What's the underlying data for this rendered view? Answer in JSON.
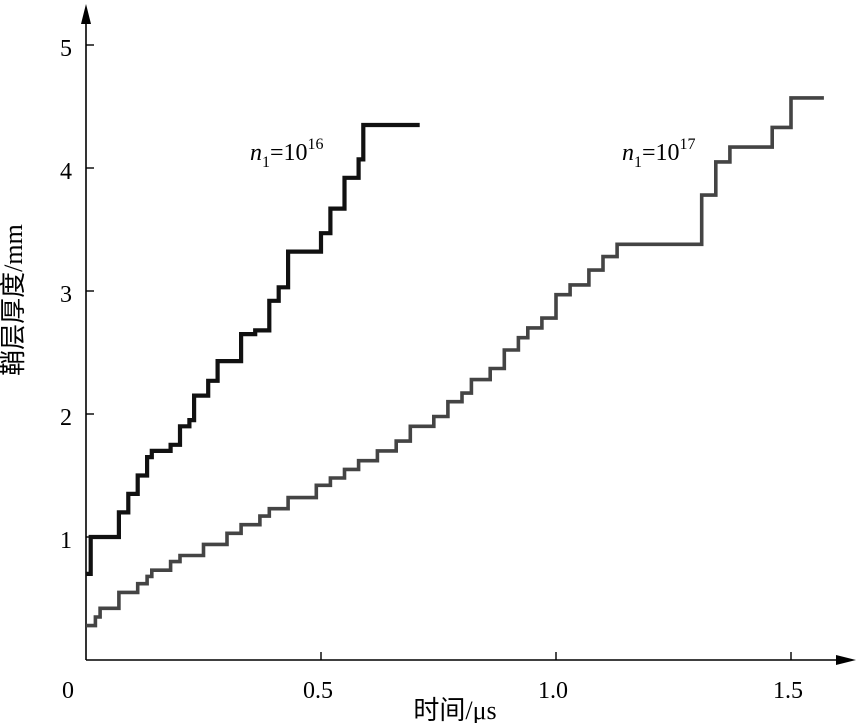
{
  "chart_data": {
    "type": "line",
    "xlabel": "时间/μs",
    "ylabel": "鞘层厚度/mm",
    "xlim": [
      0,
      1.65
    ],
    "ylim": [
      0,
      5.1
    ],
    "x_ticks": [
      "0",
      "0.5",
      "1.0",
      "1.5"
    ],
    "x_tick_values": [
      0,
      0.5,
      1.0,
      1.5
    ],
    "y_ticks": [
      "1",
      "2",
      "3",
      "4",
      "5"
    ],
    "y_tick_values": [
      1,
      2,
      3,
      4,
      5
    ],
    "grid": false,
    "series": [
      {
        "label_prefix": "n",
        "label_sub": "1",
        "label_mid": "=10",
        "label_sup": "16",
        "color": "#111111",
        "points": [
          [
            0.0,
            0.7
          ],
          [
            0.01,
            0.7
          ],
          [
            0.01,
            1.0
          ],
          [
            0.07,
            1.0
          ],
          [
            0.07,
            1.2
          ],
          [
            0.09,
            1.2
          ],
          [
            0.09,
            1.35
          ],
          [
            0.11,
            1.35
          ],
          [
            0.11,
            1.5
          ],
          [
            0.13,
            1.5
          ],
          [
            0.13,
            1.65
          ],
          [
            0.14,
            1.65
          ],
          [
            0.14,
            1.7
          ],
          [
            0.18,
            1.7
          ],
          [
            0.18,
            1.75
          ],
          [
            0.2,
            1.75
          ],
          [
            0.2,
            1.9
          ],
          [
            0.22,
            1.9
          ],
          [
            0.22,
            1.95
          ],
          [
            0.23,
            1.95
          ],
          [
            0.23,
            2.15
          ],
          [
            0.26,
            2.15
          ],
          [
            0.26,
            2.27
          ],
          [
            0.28,
            2.27
          ],
          [
            0.28,
            2.43
          ],
          [
            0.33,
            2.43
          ],
          [
            0.33,
            2.65
          ],
          [
            0.36,
            2.65
          ],
          [
            0.36,
            2.68
          ],
          [
            0.39,
            2.68
          ],
          [
            0.39,
            2.92
          ],
          [
            0.41,
            2.92
          ],
          [
            0.41,
            3.03
          ],
          [
            0.43,
            3.03
          ],
          [
            0.43,
            3.32
          ],
          [
            0.5,
            3.32
          ],
          [
            0.5,
            3.47
          ],
          [
            0.52,
            3.47
          ],
          [
            0.52,
            3.67
          ],
          [
            0.55,
            3.67
          ],
          [
            0.55,
            3.92
          ],
          [
            0.58,
            3.92
          ],
          [
            0.58,
            4.07
          ],
          [
            0.59,
            4.07
          ],
          [
            0.59,
            4.35
          ],
          [
            0.71,
            4.35
          ]
        ]
      },
      {
        "label_prefix": "n",
        "label_sub": "1",
        "label_mid": "=10",
        "label_sup": "17",
        "color": "#444444",
        "points": [
          [
            0.0,
            0.28
          ],
          [
            0.02,
            0.28
          ],
          [
            0.02,
            0.35
          ],
          [
            0.03,
            0.35
          ],
          [
            0.03,
            0.42
          ],
          [
            0.07,
            0.42
          ],
          [
            0.07,
            0.55
          ],
          [
            0.11,
            0.55
          ],
          [
            0.11,
            0.62
          ],
          [
            0.13,
            0.62
          ],
          [
            0.13,
            0.68
          ],
          [
            0.14,
            0.68
          ],
          [
            0.14,
            0.73
          ],
          [
            0.18,
            0.73
          ],
          [
            0.18,
            0.8
          ],
          [
            0.2,
            0.8
          ],
          [
            0.2,
            0.85
          ],
          [
            0.25,
            0.85
          ],
          [
            0.25,
            0.94
          ],
          [
            0.3,
            0.94
          ],
          [
            0.3,
            1.03
          ],
          [
            0.33,
            1.03
          ],
          [
            0.33,
            1.1
          ],
          [
            0.37,
            1.1
          ],
          [
            0.37,
            1.17
          ],
          [
            0.39,
            1.17
          ],
          [
            0.39,
            1.23
          ],
          [
            0.43,
            1.23
          ],
          [
            0.43,
            1.32
          ],
          [
            0.49,
            1.32
          ],
          [
            0.49,
            1.42
          ],
          [
            0.52,
            1.42
          ],
          [
            0.52,
            1.48
          ],
          [
            0.55,
            1.48
          ],
          [
            0.55,
            1.55
          ],
          [
            0.58,
            1.55
          ],
          [
            0.58,
            1.62
          ],
          [
            0.62,
            1.62
          ],
          [
            0.62,
            1.7
          ],
          [
            0.66,
            1.7
          ],
          [
            0.66,
            1.78
          ],
          [
            0.69,
            1.78
          ],
          [
            0.69,
            1.9
          ],
          [
            0.74,
            1.9
          ],
          [
            0.74,
            1.98
          ],
          [
            0.77,
            1.98
          ],
          [
            0.77,
            2.1
          ],
          [
            0.8,
            2.1
          ],
          [
            0.8,
            2.17
          ],
          [
            0.82,
            2.17
          ],
          [
            0.82,
            2.28
          ],
          [
            0.86,
            2.28
          ],
          [
            0.86,
            2.37
          ],
          [
            0.89,
            2.37
          ],
          [
            0.89,
            2.52
          ],
          [
            0.92,
            2.52
          ],
          [
            0.92,
            2.62
          ],
          [
            0.94,
            2.62
          ],
          [
            0.94,
            2.7
          ],
          [
            0.97,
            2.7
          ],
          [
            0.97,
            2.78
          ],
          [
            1.0,
            2.78
          ],
          [
            1.0,
            2.97
          ],
          [
            1.03,
            2.97
          ],
          [
            1.03,
            3.05
          ],
          [
            1.07,
            3.05
          ],
          [
            1.07,
            3.17
          ],
          [
            1.1,
            3.17
          ],
          [
            1.1,
            3.28
          ],
          [
            1.13,
            3.28
          ],
          [
            1.13,
            3.38
          ],
          [
            1.31,
            3.38
          ],
          [
            1.31,
            3.78
          ],
          [
            1.34,
            3.78
          ],
          [
            1.34,
            4.05
          ],
          [
            1.37,
            4.05
          ],
          [
            1.37,
            4.17
          ],
          [
            1.46,
            4.17
          ],
          [
            1.46,
            4.33
          ],
          [
            1.5,
            4.33
          ],
          [
            1.5,
            4.57
          ],
          [
            1.57,
            4.57
          ]
        ]
      }
    ]
  }
}
